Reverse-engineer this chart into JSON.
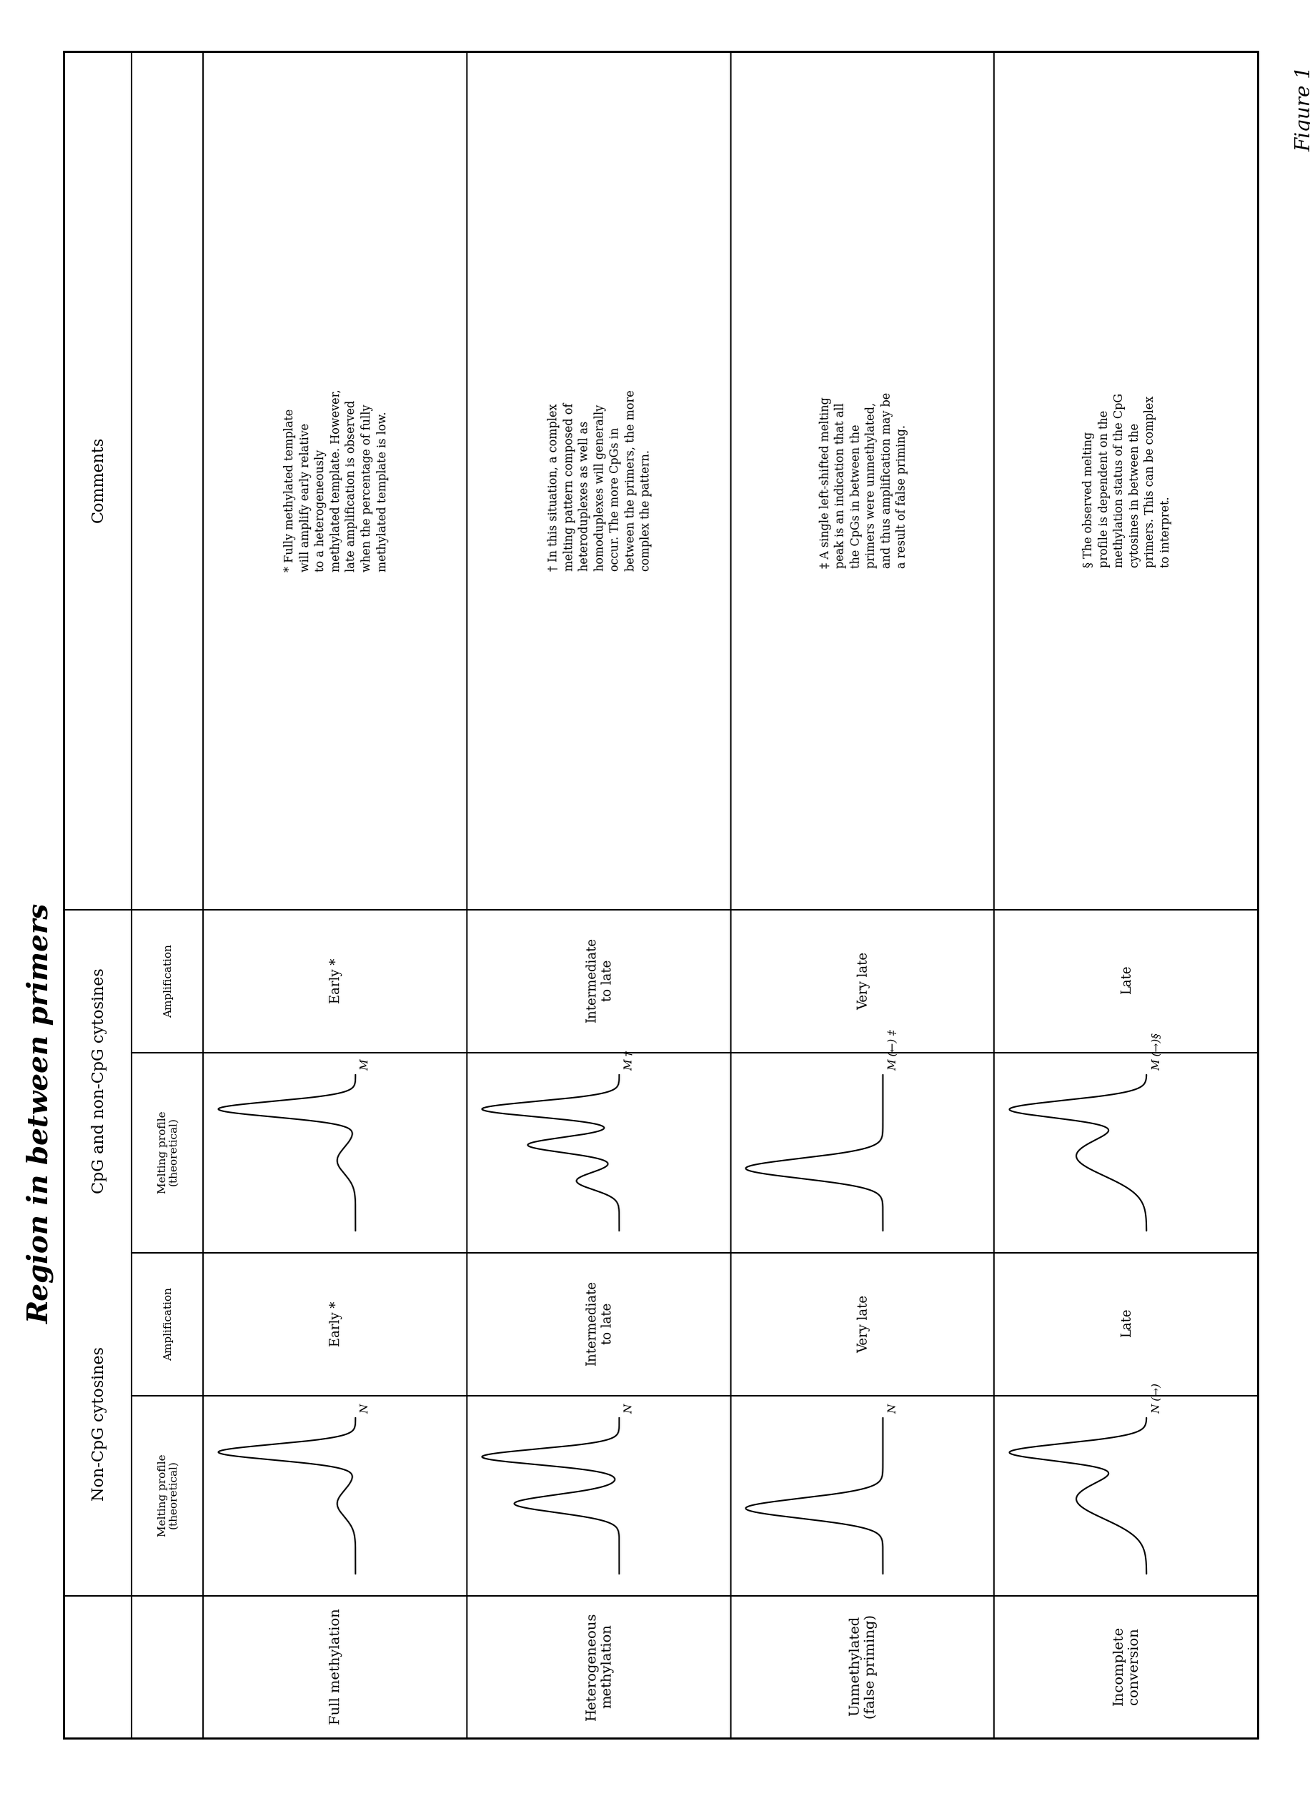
{
  "title": "Region in between primers",
  "figure_label": "Figure 1",
  "background_color": "#ffffff",
  "row_labels": [
    "Full methylation",
    "Heterogeneous\nmethylation",
    "Unmethylated\n(false priming)",
    "Incomplete\nconversion"
  ],
  "col_group1_header": "Non-CpG cytosines",
  "col_group2_header": "CpG and non-CpG cytosines",
  "subheader_melting": "Melting profile\n(theoretical)",
  "subheader_amplification": "Amplification",
  "comments_header": "Comments",
  "amplification_labels_noncpg": [
    "Early *",
    "Intermediate\nto late",
    "Very late",
    "Late"
  ],
  "amplification_labels_cpg": [
    "Early *",
    "Intermediate\nto late",
    "Very late",
    "Late"
  ],
  "n_labels": [
    "N",
    "N",
    "N",
    "N (→)"
  ],
  "m_labels": [
    "M",
    "M †",
    "M (←) ‡",
    "M (→)§"
  ],
  "comments": [
    "* Fully methylated template\nwill amplify early relative\nto a heterogeneously\nmethylated template. However,\nlate amplification is observed\nwhen the percentage of fully\nmethylated template is low.",
    "† In this situation, a complex\nmelting pattern composed of\nheteroduplexes as well as\nhomoduplexes will generally\noccur. The more CpGs in\nbetween the primers, the more\ncomplex the pattern.",
    "‡ A single left-shifted melting\npeak is an indication that all\nthe CpGs in between the\nprimers were unmethylated,\nand thus amplification may be\na result of false priming.",
    "§ The observed melting\nprofile is dependent on the\nmethylation status of the CpG\ncytosines in between the\nprimers. This can be complex\nto interpret."
  ],
  "curve_types_ncpg": [
    "single",
    "double",
    "single_left",
    "broad"
  ],
  "curve_types_cpg": [
    "single",
    "hetero",
    "single_left_tall",
    "broad"
  ]
}
